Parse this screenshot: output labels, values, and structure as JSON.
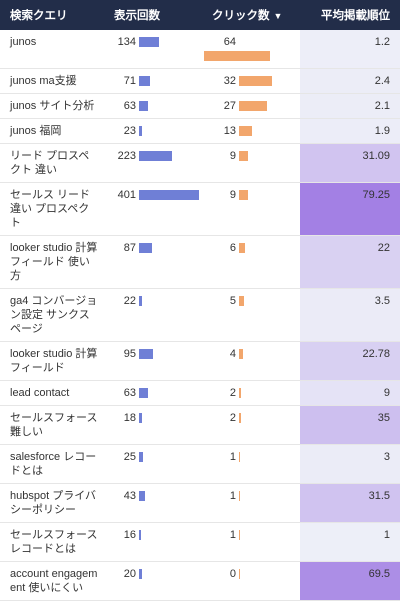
{
  "table": {
    "columns": [
      "検索クエリ",
      "表示回数",
      "クリック数",
      "平均掲載順位"
    ],
    "rows": [
      [
        "junos",
        134,
        64,
        1.2
      ],
      [
        "junos ma支援",
        71,
        32,
        2.4
      ],
      [
        "junos サイト分析",
        63,
        27,
        2.1
      ],
      [
        "junos 福岡",
        23,
        13,
        1.9
      ],
      [
        "リード プロスペクト 違い",
        223,
        9,
        31.09
      ],
      [
        "セールス リード 違い プロスペクト",
        401,
        9,
        79.25
      ],
      [
        "looker studio 計算フィールド 使い方",
        87,
        6,
        22
      ],
      [
        "ga4 コンバージョン設定 サンクスページ",
        22,
        5,
        3.5
      ],
      [
        "looker studio 計算フィールド",
        95,
        4,
        22.78
      ],
      [
        "lead contact",
        63,
        2,
        9
      ],
      [
        "セールスフォース 難しい",
        18,
        2,
        35
      ],
      [
        "salesforce レコードとは",
        25,
        1,
        3
      ],
      [
        "hubspot プライバシーポリシー",
        43,
        1,
        31.5
      ],
      [
        "セールスフォース レコードとは",
        16,
        1,
        1
      ],
      [
        "account engagement 使いにくい",
        20,
        0,
        69.5
      ]
    ]
  }
}
